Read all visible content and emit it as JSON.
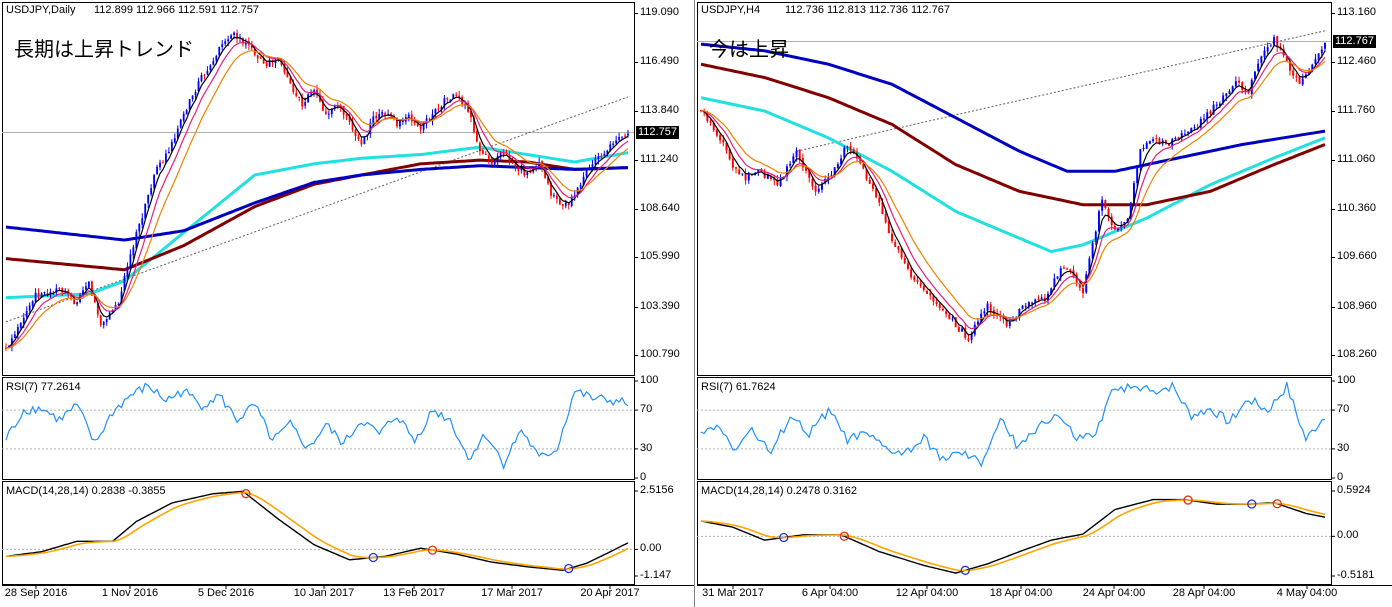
{
  "charts": [
    {
      "header": {
        "symbol": "USDJPY,Daily",
        "ohlc": "112.899 112.966 112.591 112.757"
      },
      "annotation": "長期は上昇トレンド",
      "price_axis": [
        "119.090",
        "116.490",
        "113.840",
        "111.240",
        "108.640",
        "105.990",
        "103.390",
        "100.790"
      ],
      "current_price": "112.757",
      "rsi": {
        "label": "RSI(7) 77.2614",
        "levels": [
          "100",
          "70",
          "30",
          "0"
        ]
      },
      "macd": {
        "label": "MACD(14,28,14) 0.2838 -0.3855",
        "levels": [
          "2.5156",
          "0.00",
          "-1.147"
        ]
      },
      "time_axis": [
        "28 Sep 2016",
        "1 Nov 2016",
        "5 Dec 2016",
        "10 Jan 2017",
        "13 Feb 2017",
        "17 Mar 2017",
        "20 Apr 2017"
      ]
    },
    {
      "header": {
        "symbol": "USDJPY,H4",
        "ohlc": "112.736 112.813 112.736 112.767"
      },
      "annotation": "今は上昇",
      "price_axis": [
        "113.160",
        "112.460",
        "111.760",
        "111.060",
        "110.360",
        "109.660",
        "108.960",
        "108.260"
      ],
      "current_price": "112.767",
      "rsi": {
        "label": "RSI(7) 61.7624",
        "levels": [
          "100",
          "70",
          "30",
          "0"
        ]
      },
      "macd": {
        "label": "MACD(14,28,14) 0.2478 0.3162",
        "levels": [
          "0.5924",
          "0.00",
          "-0.5181"
        ]
      },
      "time_axis": [
        "31 Mar 2017",
        "6 Apr 04:00",
        "12 Apr 04:00",
        "18 Apr 04:00",
        "24 Apr 04:00",
        "28 Apr 04:00",
        "4 May 04:00"
      ]
    }
  ],
  "colors": {
    "bull": "#0000ff",
    "bear": "#ff0000",
    "ma_black": "#000000",
    "ma_magenta": "#e0207f",
    "ma_orange": "#f08000",
    "ma_cyan": "#20e0e0",
    "ma_maroon": "#800000",
    "ma_navy": "#0000c0",
    "rsi": "#1e90ff",
    "macd_signal": "#ffa500",
    "grid": "#b0b0b0"
  },
  "chart_data": [
    {
      "type": "candlestick",
      "title": "USDJPY,Daily",
      "ylim": [
        100.0,
        119.8
      ],
      "anchors_price": [
        [
          0,
          101.2
        ],
        [
          5,
          102.8
        ],
        [
          10,
          104.1
        ],
        [
          18,
          104.4
        ],
        [
          24,
          103.7
        ],
        [
          28,
          104.8
        ],
        [
          32,
          102.5
        ],
        [
          38,
          103.8
        ],
        [
          43,
          106.8
        ],
        [
          50,
          110.6
        ],
        [
          56,
          112.2
        ],
        [
          62,
          114.6
        ],
        [
          66,
          115.8
        ],
        [
          72,
          117.4
        ],
        [
          76,
          118.2
        ],
        [
          80,
          117.8
        ],
        [
          84,
          117.2
        ],
        [
          88,
          116.6
        ],
        [
          92,
          116.8
        ],
        [
          96,
          115.5
        ],
        [
          100,
          114.4
        ],
        [
          104,
          115.2
        ],
        [
          108,
          113.8
        ],
        [
          112,
          114.4
        ],
        [
          116,
          113.3
        ],
        [
          120,
          112.3
        ],
        [
          124,
          113.6
        ],
        [
          128,
          114.0
        ],
        [
          132,
          113.4
        ],
        [
          136,
          113.7
        ],
        [
          140,
          113.1
        ],
        [
          144,
          113.9
        ],
        [
          148,
          114.6
        ],
        [
          152,
          114.9
        ],
        [
          156,
          114.1
        ],
        [
          160,
          111.9
        ],
        [
          164,
          111.3
        ],
        [
          168,
          111.8
        ],
        [
          172,
          111.1
        ],
        [
          176,
          110.6
        ],
        [
          180,
          111.2
        ],
        [
          184,
          109.6
        ],
        [
          188,
          108.9
        ],
        [
          192,
          109.4
        ],
        [
          196,
          110.9
        ],
        [
          200,
          111.5
        ],
        [
          204,
          112.1
        ],
        [
          208,
          112.7
        ],
        [
          210,
          112.8
        ]
      ],
      "anchors_rsi": [
        [
          0,
          40
        ],
        [
          6,
          70
        ],
        [
          12,
          72
        ],
        [
          18,
          60
        ],
        [
          24,
          75
        ],
        [
          30,
          35
        ],
        [
          36,
          68
        ],
        [
          42,
          85
        ],
        [
          48,
          95
        ],
        [
          54,
          80
        ],
        [
          60,
          90
        ],
        [
          66,
          75
        ],
        [
          72,
          85
        ],
        [
          78,
          60
        ],
        [
          84,
          75
        ],
        [
          90,
          38
        ],
        [
          96,
          55
        ],
        [
          102,
          30
        ],
        [
          108,
          55
        ],
        [
          114,
          35
        ],
        [
          120,
          60
        ],
        [
          126,
          45
        ],
        [
          132,
          65
        ],
        [
          138,
          38
        ],
        [
          144,
          70
        ],
        [
          150,
          60
        ],
        [
          156,
          20
        ],
        [
          162,
          45
        ],
        [
          168,
          15
        ],
        [
          174,
          50
        ],
        [
          180,
          20
        ],
        [
          186,
          30
        ],
        [
          192,
          90
        ],
        [
          198,
          82
        ],
        [
          204,
          80
        ],
        [
          210,
          77
        ]
      ],
      "anchors_macd": [
        [
          0,
          -0.3
        ],
        [
          12,
          -0.1
        ],
        [
          24,
          0.35
        ],
        [
          36,
          0.35
        ],
        [
          44,
          1.2
        ],
        [
          56,
          2.0
        ],
        [
          70,
          2.4
        ],
        [
          80,
          2.5
        ],
        [
          92,
          1.3
        ],
        [
          104,
          0.2
        ],
        [
          116,
          -0.45
        ],
        [
          128,
          -0.3
        ],
        [
          140,
          0.05
        ],
        [
          152,
          -0.2
        ],
        [
          164,
          -0.55
        ],
        [
          176,
          -0.75
        ],
        [
          188,
          -0.9
        ],
        [
          196,
          -0.6
        ],
        [
          204,
          -0.1
        ],
        [
          210,
          0.28
        ]
      ],
      "anchors_ma_cyan": [
        [
          0,
          104.0
        ],
        [
          28,
          104.2
        ],
        [
          40,
          104.9
        ],
        [
          60,
          107.5
        ],
        [
          84,
          110.6
        ],
        [
          104,
          111.2
        ],
        [
          120,
          111.5
        ],
        [
          140,
          111.7
        ],
        [
          160,
          112.1
        ],
        [
          176,
          111.7
        ],
        [
          192,
          111.3
        ],
        [
          210,
          111.8
        ]
      ],
      "anchors_ma_maroon": [
        [
          0,
          106.1
        ],
        [
          40,
          105.5
        ],
        [
          60,
          106.8
        ],
        [
          84,
          108.9
        ],
        [
          104,
          110.1
        ],
        [
          120,
          110.6
        ],
        [
          140,
          111.2
        ],
        [
          160,
          111.4
        ],
        [
          176,
          111.3
        ],
        [
          192,
          110.9
        ],
        [
          210,
          111.0
        ]
      ],
      "anchors_ma_navy": [
        [
          0,
          107.8
        ],
        [
          40,
          107.1
        ],
        [
          60,
          107.6
        ],
        [
          84,
          109.1
        ],
        [
          104,
          110.2
        ],
        [
          120,
          110.6
        ],
        [
          140,
          110.9
        ],
        [
          160,
          111.1
        ],
        [
          176,
          111.0
        ],
        [
          192,
          110.9
        ],
        [
          210,
          111.0
        ]
      ],
      "trendline": [
        [
          0,
          102.7
        ],
        [
          210,
          114.8
        ]
      ]
    },
    {
      "type": "candlestick",
      "title": "USDJPY,H4",
      "ylim": [
        107.9,
        113.4
      ],
      "anchors_price": [
        [
          0,
          111.8
        ],
        [
          6,
          111.4
        ],
        [
          10,
          111.0
        ],
        [
          14,
          110.8
        ],
        [
          18,
          110.9
        ],
        [
          24,
          110.7
        ],
        [
          30,
          111.2
        ],
        [
          36,
          110.6
        ],
        [
          40,
          110.8
        ],
        [
          46,
          111.3
        ],
        [
          50,
          111.0
        ],
        [
          56,
          110.4
        ],
        [
          60,
          109.9
        ],
        [
          66,
          109.3
        ],
        [
          72,
          109.0
        ],
        [
          78,
          108.7
        ],
        [
          84,
          108.4
        ],
        [
          90,
          108.9
        ],
        [
          96,
          108.6
        ],
        [
          102,
          108.9
        ],
        [
          108,
          109.0
        ],
        [
          114,
          109.5
        ],
        [
          120,
          109.1
        ],
        [
          126,
          110.5
        ],
        [
          130,
          110.0
        ],
        [
          134,
          110.2
        ],
        [
          138,
          111.2
        ],
        [
          142,
          111.4
        ],
        [
          146,
          111.3
        ],
        [
          150,
          111.4
        ],
        [
          156,
          111.6
        ],
        [
          162,
          111.9
        ],
        [
          168,
          112.2
        ],
        [
          172,
          112.1
        ],
        [
          176,
          112.6
        ],
        [
          180,
          112.9
        ],
        [
          184,
          112.5
        ],
        [
          188,
          112.2
        ],
        [
          192,
          112.5
        ],
        [
          196,
          112.8
        ]
      ],
      "anchors_rsi": [
        [
          0,
          45
        ],
        [
          6,
          55
        ],
        [
          10,
          30
        ],
        [
          16,
          50
        ],
        [
          22,
          25
        ],
        [
          28,
          65
        ],
        [
          34,
          45
        ],
        [
          40,
          70
        ],
        [
          46,
          40
        ],
        [
          52,
          45
        ],
        [
          58,
          30
        ],
        [
          64,
          25
        ],
        [
          70,
          40
        ],
        [
          76,
          20
        ],
        [
          82,
          25
        ],
        [
          88,
          15
        ],
        [
          94,
          60
        ],
        [
          100,
          30
        ],
        [
          106,
          55
        ],
        [
          112,
          65
        ],
        [
          118,
          40
        ],
        [
          124,
          45
        ],
        [
          130,
          95
        ],
        [
          136,
          92
        ],
        [
          142,
          90
        ],
        [
          148,
          95
        ],
        [
          154,
          65
        ],
        [
          160,
          72
        ],
        [
          166,
          58
        ],
        [
          172,
          82
        ],
        [
          178,
          70
        ],
        [
          184,
          95
        ],
        [
          190,
          40
        ],
        [
          196,
          65
        ]
      ],
      "anchors_macd": [
        [
          0,
          0.2
        ],
        [
          10,
          0.12
        ],
        [
          20,
          -0.05
        ],
        [
          32,
          0.02
        ],
        [
          44,
          0.02
        ],
        [
          56,
          -0.2
        ],
        [
          70,
          -0.38
        ],
        [
          80,
          -0.48
        ],
        [
          90,
          -0.36
        ],
        [
          100,
          -0.2
        ],
        [
          110,
          -0.05
        ],
        [
          120,
          0.03
        ],
        [
          130,
          0.35
        ],
        [
          142,
          0.48
        ],
        [
          152,
          0.48
        ],
        [
          162,
          0.42
        ],
        [
          172,
          0.42
        ],
        [
          180,
          0.44
        ],
        [
          190,
          0.3
        ],
        [
          196,
          0.25
        ]
      ],
      "anchors_ma_cyan": [
        [
          0,
          112.0
        ],
        [
          20,
          111.8
        ],
        [
          40,
          111.4
        ],
        [
          60,
          110.9
        ],
        [
          80,
          110.3
        ],
        [
          100,
          109.9
        ],
        [
          110,
          109.7
        ],
        [
          120,
          109.8
        ],
        [
          140,
          110.2
        ],
        [
          160,
          110.7
        ],
        [
          180,
          111.1
        ],
        [
          196,
          111.4
        ]
      ],
      "anchors_ma_maroon": [
        [
          0,
          112.5
        ],
        [
          20,
          112.3
        ],
        [
          40,
          112.0
        ],
        [
          60,
          111.6
        ],
        [
          80,
          111.0
        ],
        [
          100,
          110.6
        ],
        [
          120,
          110.4
        ],
        [
          140,
          110.4
        ],
        [
          160,
          110.6
        ],
        [
          180,
          111.0
        ],
        [
          196,
          111.3
        ]
      ],
      "anchors_ma_navy": [
        [
          0,
          112.8
        ],
        [
          20,
          112.7
        ],
        [
          40,
          112.5
        ],
        [
          60,
          112.2
        ],
        [
          80,
          111.7
        ],
        [
          100,
          111.2
        ],
        [
          115,
          110.9
        ],
        [
          130,
          110.9
        ],
        [
          150,
          111.1
        ],
        [
          170,
          111.3
        ],
        [
          196,
          111.5
        ]
      ],
      "trendline": [
        [
          30,
          111.2
        ],
        [
          196,
          113.0
        ]
      ]
    }
  ]
}
